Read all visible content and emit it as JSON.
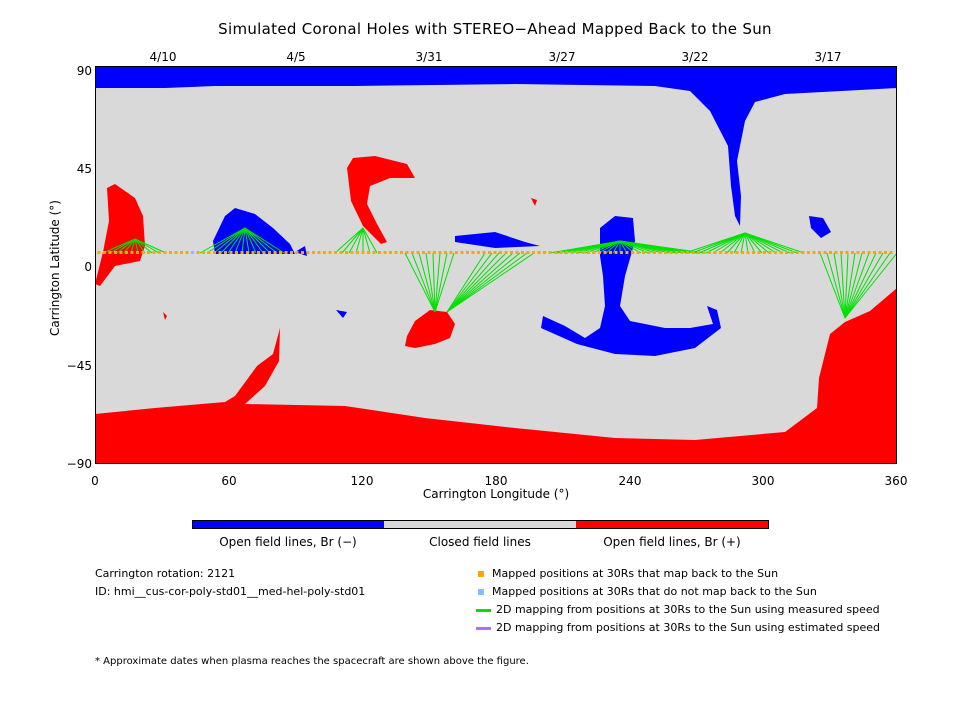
{
  "title": "Simulated Coronal Holes with STEREO−Ahead Mapped Back to the Sun",
  "top_dates": [
    "4/10",
    "4/5",
    "3/31",
    "3/27",
    "3/22",
    "3/17"
  ],
  "x_axis": {
    "label": "Carrington Longitude (°)",
    "ticks": [
      "0",
      "60",
      "120",
      "180",
      "240",
      "300",
      "360"
    ],
    "range": [
      0,
      360
    ]
  },
  "y_axis": {
    "label": "Carrington Latitude (°)",
    "ticks": [
      "90",
      "45",
      "0",
      "−45",
      "−90"
    ],
    "range": [
      -90,
      90
    ]
  },
  "colorbar": {
    "negative": {
      "label": "Open field lines, Br (−)",
      "color": "#0000ff"
    },
    "closed": {
      "label": "Closed field lines",
      "color": "#d9d9d9"
    },
    "positive": {
      "label": "Open field lines, Br (+)",
      "color": "#ff0000"
    }
  },
  "info": {
    "rotation": "Carrington rotation: 2121",
    "id": "ID: hmi__cus-cor-poly-std01__med-hel-poly-std01"
  },
  "legend": [
    {
      "label": "Mapped positions at 30Rs that map back to the Sun",
      "color": "#ffa500",
      "kind": "square"
    },
    {
      "label": "Mapped positions at 30Rs that do not map back to the Sun",
      "color": "#80c0ff",
      "kind": "square"
    },
    {
      "label": "2D mapping from positions at 30Rs to the Sun using measured speed",
      "color": "#00e000",
      "kind": "line"
    },
    {
      "label": "2D mapping from positions at 30Rs to the Sun using estimated speed",
      "color": "#b070ff",
      "kind": "line"
    }
  ],
  "footnote": "* Approximate dates when plasma reaches the spacecraft are shown above the figure."
}
